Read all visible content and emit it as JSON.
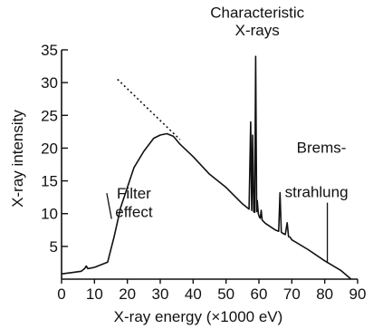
{
  "chart_data": {
    "type": "line",
    "title": "",
    "xlabel": "X-ray energy (×1000 eV)",
    "ylabel": "X-ray intensity",
    "xlim": [
      0,
      90
    ],
    "ylim": [
      0,
      35
    ],
    "xticks": [
      0,
      10,
      20,
      30,
      40,
      50,
      60,
      70,
      80,
      90
    ],
    "yticks": [
      5,
      10,
      15,
      20,
      25,
      30,
      35
    ],
    "grid": false,
    "series": [
      {
        "style": "solid",
        "x": [
          0,
          3,
          6,
          7,
          7.5,
          8,
          9,
          10,
          12,
          14,
          16,
          18,
          20,
          22,
          25,
          28,
          30,
          32,
          34,
          36,
          40,
          45,
          50,
          55,
          57,
          57.5,
          57.8,
          58.1,
          58.4,
          58.7,
          59.0,
          59.3,
          59.5,
          59.8,
          60.1,
          60.4,
          60.7,
          61.0,
          62,
          65,
          66.0,
          66.4,
          66.8,
          67.2,
          68,
          68.6,
          69.0,
          69.5,
          70,
          75,
          80,
          85,
          88
        ],
        "y": [
          0.8,
          1.0,
          1.2,
          1.6,
          2.0,
          1.6,
          1.7,
          1.8,
          2.2,
          2.6,
          6.5,
          11.0,
          14.0,
          17.0,
          19.5,
          21.5,
          22.0,
          22.2,
          21.8,
          20.6,
          18.7,
          16.0,
          14.0,
          11.5,
          10.7,
          24.0,
          10.5,
          22.0,
          10.3,
          10.2,
          34.0,
          10.3,
          12.0,
          10.0,
          9.5,
          9.3,
          10.5,
          9.0,
          8.5,
          7.5,
          7.3,
          13.2,
          7.2,
          7.0,
          6.8,
          8.6,
          6.5,
          6.4,
          6.0,
          4.5,
          2.8,
          1.3,
          0
        ]
      },
      {
        "style": "dotted",
        "x": [
          17,
          36
        ],
        "y": [
          30.5,
          21.3
        ]
      }
    ],
    "annotations": [
      {
        "text": "Characteristic",
        "x": 59.5,
        "y": 39.9
      },
      {
        "text": "X-rays",
        "x": 59.5,
        "y": 37.2
      },
      {
        "text": "Filter",
        "x": 22,
        "y": 12.3,
        "leader_to": [
          15.2,
          9.2
        ]
      },
      {
        "text": "effect",
        "x": 22,
        "y": 9.5
      },
      {
        "text": "Brems-",
        "x": 79,
        "y": 19.3
      },
      {
        "text": "strahlung",
        "x": 77.5,
        "y": 12.5,
        "leader_to": [
          80.8,
          2.5
        ]
      }
    ]
  }
}
